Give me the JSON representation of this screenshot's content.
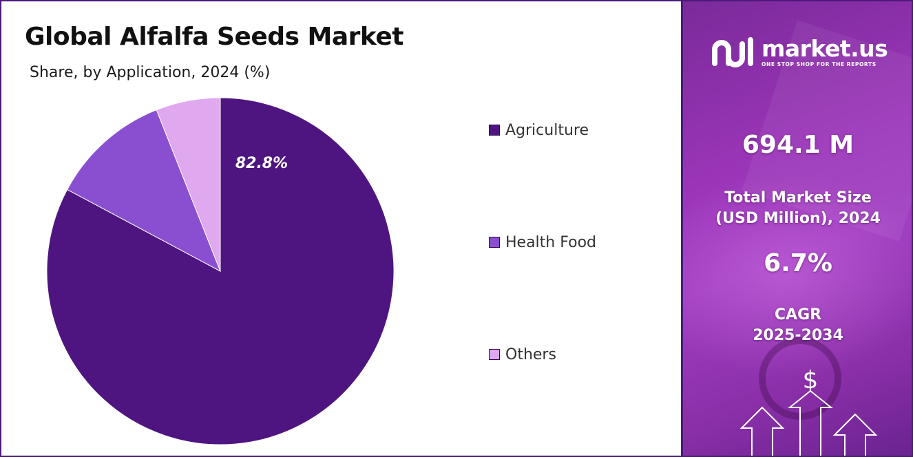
{
  "header": {
    "title": "Global Alfalfa Seeds Market",
    "subtitle": "Share, by Application, 2024 (%)"
  },
  "chart_data": {
    "type": "pie",
    "title": "Global Alfalfa Seeds Market",
    "subtitle": "Share, by Application, 2024 (%)",
    "categories": [
      "Agriculture",
      "Health Food",
      "Others"
    ],
    "values": [
      82.8,
      11.2,
      6.0
    ],
    "colors": [
      "#4e1580",
      "#8a4fd0",
      "#e0a8ee"
    ],
    "data_labels": [
      "82.8%",
      "",
      ""
    ],
    "legend_position": "right"
  },
  "legend": {
    "items": [
      {
        "label": "Agriculture",
        "color": "#4e1580"
      },
      {
        "label": "Health Food",
        "color": "#8a4fd0"
      },
      {
        "label": "Others",
        "color": "#e0a8ee"
      }
    ]
  },
  "brand": {
    "name": "market.us",
    "tagline": "ONE STOP SHOP FOR THE REPORTS"
  },
  "stats": {
    "market_size_value": "694.1 M",
    "market_size_label_line1": "Total Market Size",
    "market_size_label_line2": "(USD Million), 2024",
    "cagr_value": "6.7%",
    "cagr_label_line1": "CAGR",
    "cagr_label_line2": "2025-2034"
  },
  "colors": {
    "border": "#4a1a7a",
    "panel_purple": "#9b35b8"
  },
  "icons": {
    "brand_logo": "market-us-logo-icon",
    "dollar": "dollar-icon",
    "arrows": "growth-arrows-icon"
  }
}
